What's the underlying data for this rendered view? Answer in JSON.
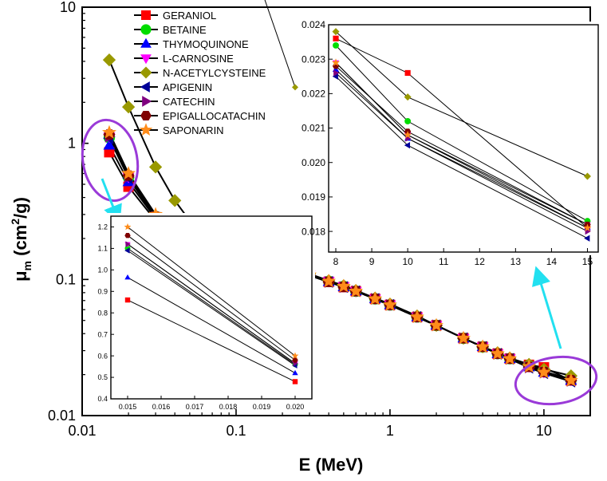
{
  "chart_data": {
    "type": "line",
    "scale": "log-log",
    "xlabel": "E (MeV)",
    "ylabel_main": "μ",
    "ylabel_sub": "m",
    "ylabel_unit_open": " (cm",
    "ylabel_unit_sup": "2",
    "ylabel_unit_close": "/g)",
    "xlim": [
      0.01,
      20
    ],
    "ylim": [
      0.01,
      10
    ],
    "x_ticks": [
      {
        "v": 0.01,
        "label": "0.01"
      },
      {
        "v": 0.1,
        "label": "0.1"
      },
      {
        "v": 1,
        "label": "1"
      },
      {
        "v": 10,
        "label": "10"
      }
    ],
    "y_ticks": [
      {
        "v": 0.01,
        "label": "0.01"
      },
      {
        "v": 0.1,
        "label": "0.1"
      },
      {
        "v": 1,
        "label": "1"
      },
      {
        "v": 10,
        "label": "10"
      }
    ],
    "x": [
      0.015,
      0.02,
      0.03,
      0.04,
      0.05,
      0.06,
      0.08,
      0.1,
      0.15,
      0.2,
      0.3,
      0.4,
      0.5,
      0.6,
      0.8,
      1,
      1.5,
      2,
      3,
      4,
      5,
      6,
      8,
      10,
      15
    ],
    "series": [
      {
        "name": "GERANIOL",
        "color": "#ff0000",
        "marker": "square",
        "values": [
          0.86,
          0.48,
          0.27,
          0.215,
          0.195,
          0.183,
          0.168,
          0.157,
          0.138,
          0.125,
          0.107,
          0.096,
          0.088,
          0.082,
          0.072,
          0.065,
          0.053,
          0.046,
          0.037,
          0.032,
          0.0285,
          0.0262,
          0.0236,
          0.0226,
          0.0181
        ]
      },
      {
        "name": "BETAINE",
        "color": "#00dd00",
        "marker": "circle",
        "values": [
          1.1,
          0.56,
          0.29,
          0.22,
          0.198,
          0.185,
          0.17,
          0.159,
          0.139,
          0.126,
          0.108,
          0.097,
          0.089,
          0.082,
          0.072,
          0.065,
          0.053,
          0.046,
          0.037,
          0.032,
          0.0285,
          0.0262,
          0.0234,
          0.0212,
          0.0183
        ]
      },
      {
        "name": "THYMOQUINONE",
        "color": "#0000ff",
        "marker": "triangle-up",
        "values": [
          0.965,
          0.52,
          0.28,
          0.217,
          0.196,
          0.184,
          0.169,
          0.158,
          0.138,
          0.125,
          0.107,
          0.096,
          0.088,
          0.082,
          0.072,
          0.065,
          0.053,
          0.046,
          0.037,
          0.032,
          0.0284,
          0.0261,
          0.0227,
          0.0207,
          0.0181
        ]
      },
      {
        "name": "L-CARNOSINE",
        "color": "#ff00ff",
        "marker": "triangle-down",
        "values": [
          1.12,
          0.565,
          0.29,
          0.22,
          0.198,
          0.185,
          0.17,
          0.159,
          0.139,
          0.126,
          0.108,
          0.097,
          0.089,
          0.082,
          0.072,
          0.065,
          0.053,
          0.046,
          0.037,
          0.032,
          0.0285,
          0.0262,
          0.0229,
          0.0208,
          0.0182
        ]
      },
      {
        "name": "N-ACETYLCYSTEINE",
        "color": "#999900",
        "marker": "diamond",
        "values": [
          4.1,
          1.85,
          0.67,
          0.38,
          0.27,
          0.225,
          0.188,
          0.168,
          0.144,
          0.129,
          0.11,
          0.098,
          0.09,
          0.083,
          0.073,
          0.066,
          0.054,
          0.046,
          0.037,
          0.032,
          0.029,
          0.0265,
          0.0238,
          0.0219,
          0.0196
        ]
      },
      {
        "name": "APIGENIN",
        "color": "#000099",
        "marker": "triangle-left",
        "values": [
          1.09,
          0.555,
          0.285,
          0.219,
          0.197,
          0.184,
          0.169,
          0.158,
          0.138,
          0.125,
          0.107,
          0.096,
          0.088,
          0.082,
          0.072,
          0.065,
          0.053,
          0.046,
          0.037,
          0.032,
          0.0284,
          0.0261,
          0.0225,
          0.0205,
          0.0178
        ]
      },
      {
        "name": "CATECHIN",
        "color": "#800080",
        "marker": "triangle-right",
        "values": [
          1.12,
          0.565,
          0.288,
          0.22,
          0.198,
          0.185,
          0.17,
          0.158,
          0.138,
          0.125,
          0.107,
          0.096,
          0.088,
          0.082,
          0.072,
          0.065,
          0.053,
          0.046,
          0.037,
          0.032,
          0.0284,
          0.0261,
          0.0226,
          0.0207,
          0.018
        ]
      },
      {
        "name": "EPIGALLOCATACHIN",
        "color": "#800000",
        "marker": "hexagon",
        "values": [
          1.16,
          0.58,
          0.29,
          0.221,
          0.199,
          0.186,
          0.171,
          0.159,
          0.139,
          0.126,
          0.108,
          0.096,
          0.088,
          0.082,
          0.072,
          0.065,
          0.053,
          0.046,
          0.037,
          0.032,
          0.0285,
          0.0262,
          0.0228,
          0.0209,
          0.0182
        ]
      },
      {
        "name": "SAPONARIN",
        "color": "#ff8c1a",
        "marker": "star",
        "values": [
          1.2,
          0.6,
          0.3,
          0.222,
          0.2,
          0.187,
          0.172,
          0.16,
          0.14,
          0.126,
          0.108,
          0.097,
          0.089,
          0.082,
          0.072,
          0.065,
          0.053,
          0.046,
          0.037,
          0.032,
          0.0285,
          0.0262,
          0.0229,
          0.0208,
          0.0181
        ]
      }
    ],
    "inset_left": {
      "xlim": [
        0.0145,
        0.0205
      ],
      "ylim": [
        0.4,
        1.25
      ],
      "x_ticks": [
        {
          "v": 0.015,
          "label": "0.015"
        },
        {
          "v": 0.016,
          "label": "0.016"
        },
        {
          "v": 0.017,
          "label": "0.017"
        },
        {
          "v": 0.018,
          "label": "0.018"
        },
        {
          "v": 0.019,
          "label": "0.019"
        },
        {
          "v": 0.02,
          "label": "0.020"
        }
      ],
      "y_ticks": [
        {
          "v": 0.4,
          "label": "0.4"
        },
        {
          "v": 0.5,
          "label": "0.5"
        },
        {
          "v": 0.6,
          "label": "0.6"
        },
        {
          "v": 0.7,
          "label": "0.7"
        },
        {
          "v": 0.8,
          "label": "0.8"
        },
        {
          "v": 0.9,
          "label": "0.9"
        },
        {
          "v": 1.0,
          "label": "1.0"
        },
        {
          "v": 1.1,
          "label": "1.1"
        },
        {
          "v": 1.2,
          "label": "1.2"
        }
      ],
      "x": [
        0.015,
        0.02
      ]
    },
    "inset_right": {
      "xlim": [
        7.8,
        15.3
      ],
      "ylim": [
        0.0174,
        0.024
      ],
      "x_ticks": [
        {
          "v": 8,
          "label": "8"
        },
        {
          "v": 9,
          "label": "9"
        },
        {
          "v": 10,
          "label": "10"
        },
        {
          "v": 11,
          "label": "11"
        },
        {
          "v": 12,
          "label": "12"
        },
        {
          "v": 13,
          "label": "13"
        },
        {
          "v": 14,
          "label": "14"
        },
        {
          "v": 15,
          "label": "15"
        }
      ],
      "y_ticks": [
        {
          "v": 0.018,
          "label": "0.018"
        },
        {
          "v": 0.019,
          "label": "0.019"
        },
        {
          "v": 0.02,
          "label": "0.020"
        },
        {
          "v": 0.021,
          "label": "0.021"
        },
        {
          "v": 0.022,
          "label": "0.022"
        },
        {
          "v": 0.023,
          "label": "0.023"
        },
        {
          "v": 0.024,
          "label": "0.024"
        }
      ],
      "x": [
        8,
        10,
        15
      ]
    },
    "annotations": [
      "purple ellipse around low-energy points with arrow to left inset",
      "purple ellipse around high-energy points with arrow to right inset"
    ]
  }
}
